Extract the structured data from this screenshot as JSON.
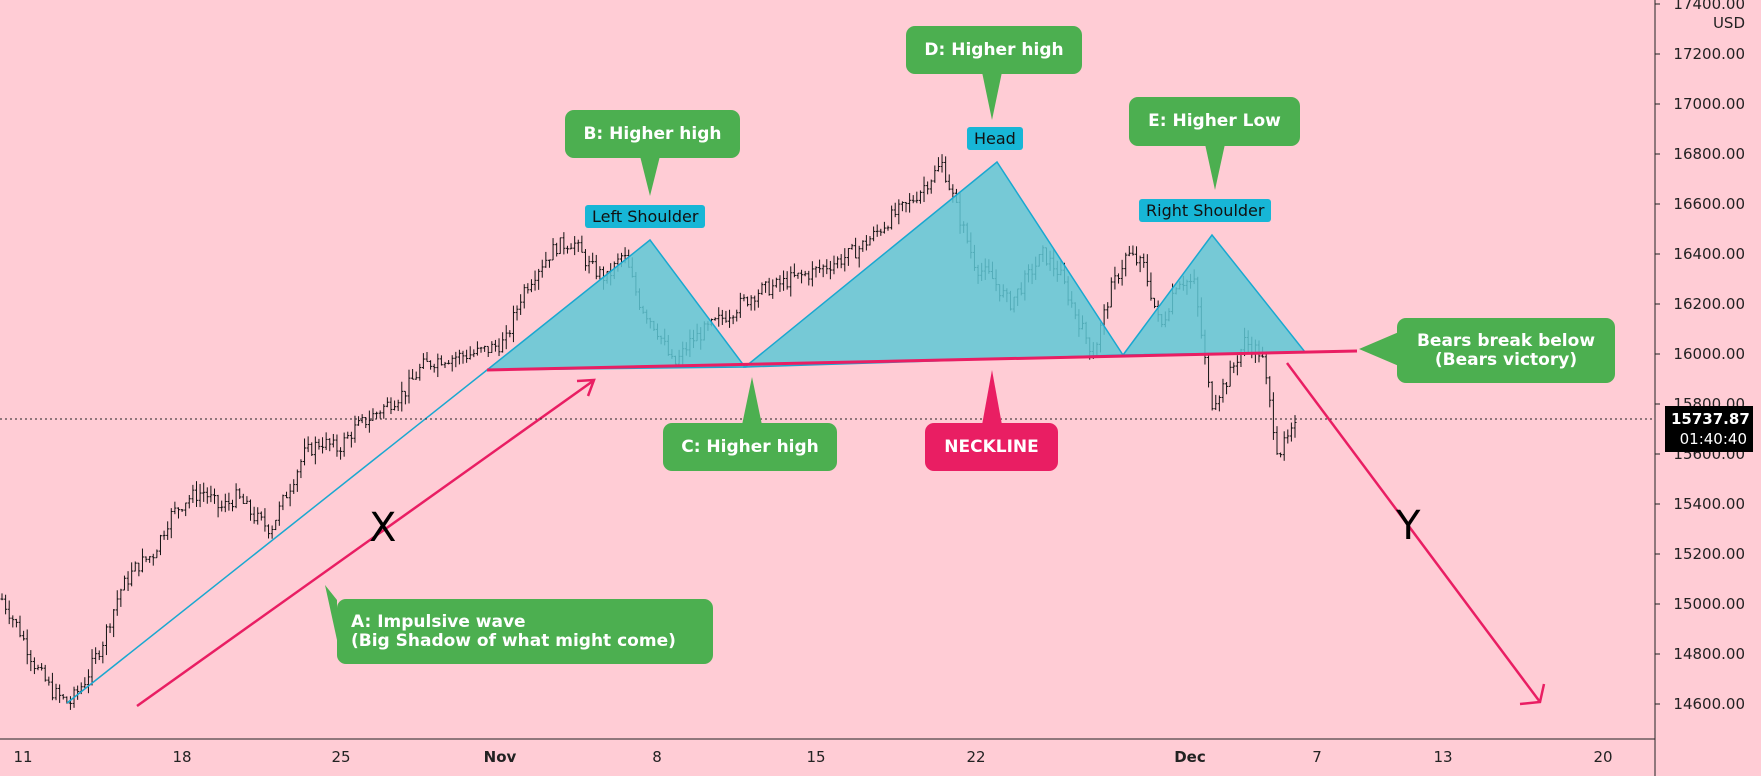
{
  "chart_data": {
    "type": "candlestick",
    "currency": "USD",
    "ylim": [
      14500,
      17400
    ],
    "y_ticks": [
      "17400.00",
      "17200.00",
      "17000.00",
      "16800.00",
      "16600.00",
      "16400.00",
      "16200.00",
      "16000.00",
      "15800.00",
      "15600.00",
      "15400.00",
      "15200.00",
      "15000.00",
      "14800.00",
      "14600.00"
    ],
    "x_ticks": [
      "11",
      "18",
      "25",
      "Nov",
      "8",
      "15",
      "22",
      "Dec",
      "7",
      "13",
      "20"
    ],
    "last_price": "15737.87",
    "countdown": "01:40:40",
    "price_series": [
      15020,
      14900,
      14750,
      14650,
      14600,
      14700,
      14850,
      15050,
      15150,
      15200,
      15350,
      15420,
      15450,
      15380,
      15430,
      15350,
      15300,
      15450,
      15600,
      15650,
      15620,
      15700,
      15750,
      15800,
      15850,
      15950,
      15980,
      15990,
      16000,
      16020,
      16050,
      16250,
      16350,
      16430,
      16450,
      16350,
      16300,
      16400,
      16200,
      16100,
      15950,
      16050,
      16100,
      16150,
      16200,
      16250,
      16270,
      16300,
      16320,
      16350,
      16380,
      16420,
      16480,
      16550,
      16600,
      16680,
      16760,
      16550,
      16350,
      16300,
      16200,
      16300,
      16400,
      16320,
      16150,
      16000,
      16250,
      16400,
      16350,
      16100,
      16300,
      16280,
      15800,
      15900,
      16050,
      16000,
      15600,
      15700
    ]
  },
  "labels": {
    "a": [
      "A: Impulsive wave",
      "(Big Shadow of what might come)"
    ],
    "b": "B: Higher high",
    "c": "C: Higher high",
    "d": "D: Higher high",
    "e": "E: Higher Low",
    "bears": [
      "Bears break below",
      "(Bears victory)"
    ],
    "neckline": "NECKLINE",
    "left_shoulder": "Left Shoulder",
    "head": "Head",
    "right_shoulder": "Right Shoulder",
    "x_marker": "X",
    "y_marker": "Y"
  },
  "colors": {
    "background": "#ffccd5",
    "pattern_fill": "#5ec8d6",
    "pattern_line": "#1aa8d0",
    "neckline": "#e91e63",
    "callout": "#4caf50",
    "neckline_callout": "#e91e63",
    "tag": "#17b6d6"
  }
}
